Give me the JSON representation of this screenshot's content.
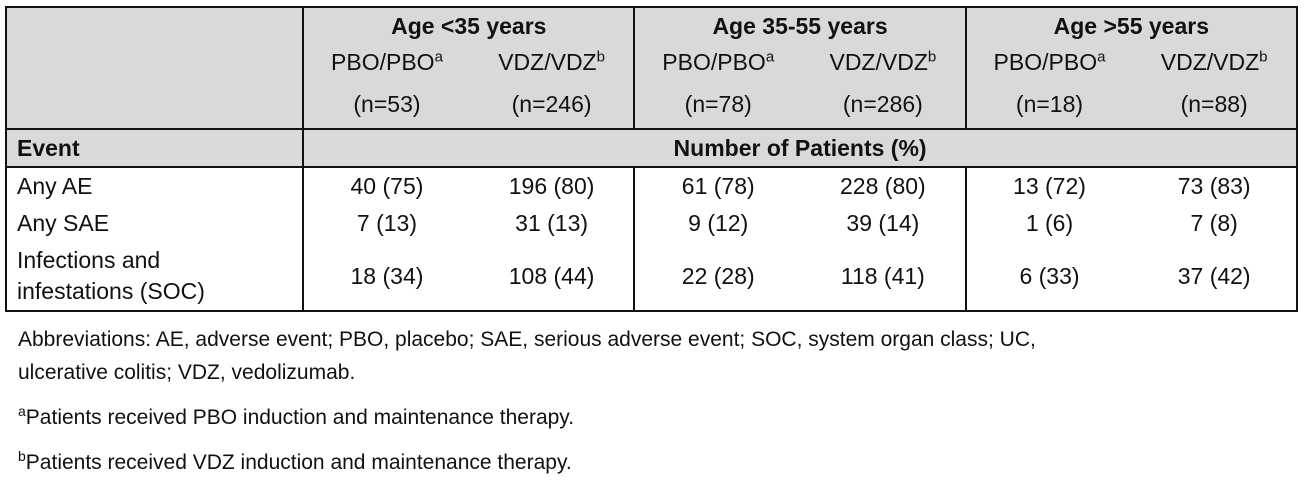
{
  "table": {
    "groups": [
      {
        "label": "Age <35 years"
      },
      {
        "label": "Age 35-55 years"
      },
      {
        "label": "Age >55 years"
      }
    ],
    "arms": [
      {
        "label": "PBO/PBO",
        "sup": "a",
        "n": "(n=53)"
      },
      {
        "label": "VDZ/VDZ",
        "sup": "b",
        "n": "(n=246)"
      },
      {
        "label": "PBO/PBO",
        "sup": "a",
        "n": "(n=78)"
      },
      {
        "label": "VDZ/VDZ",
        "sup": "b",
        "n": "(n=286)"
      },
      {
        "label": "PBO/PBO",
        "sup": "a",
        "n": "(n=18)"
      },
      {
        "label": "VDZ/VDZ",
        "sup": "b",
        "n": "(n=88)"
      }
    ],
    "event_header": "Event",
    "span_header": "Number of Patients (%)",
    "rows": [
      {
        "event": "Any AE",
        "values": [
          "40 (75)",
          "196 (80)",
          "61 (78)",
          "228 (80)",
          "13 (72)",
          "73 (83)"
        ]
      },
      {
        "event": "Any SAE",
        "values": [
          "7 (13)",
          "31 (13)",
          "9 (12)",
          "39 (14)",
          "1 (6)",
          "7 (8)"
        ]
      },
      {
        "event_line1": "Infections and",
        "event_line2": "infestations (SOC)",
        "values": [
          "18 (34)",
          "108 (44)",
          "22 (28)",
          "118 (41)",
          "6 (33)",
          "37 (42)"
        ]
      }
    ]
  },
  "notes": {
    "abbreviations_line1": "Abbreviations: AE, adverse event; PBO, placebo; SAE, serious adverse event; SOC, system organ class; UC,",
    "abbreviations_line2": "ulcerative colitis; VDZ, vedolizumab.",
    "footnote_a_marker": "a",
    "footnote_a_text": "Patients received PBO induction and maintenance therapy.",
    "footnote_b_marker": "b",
    "footnote_b_text": "Patients received VDZ induction and maintenance therapy."
  }
}
